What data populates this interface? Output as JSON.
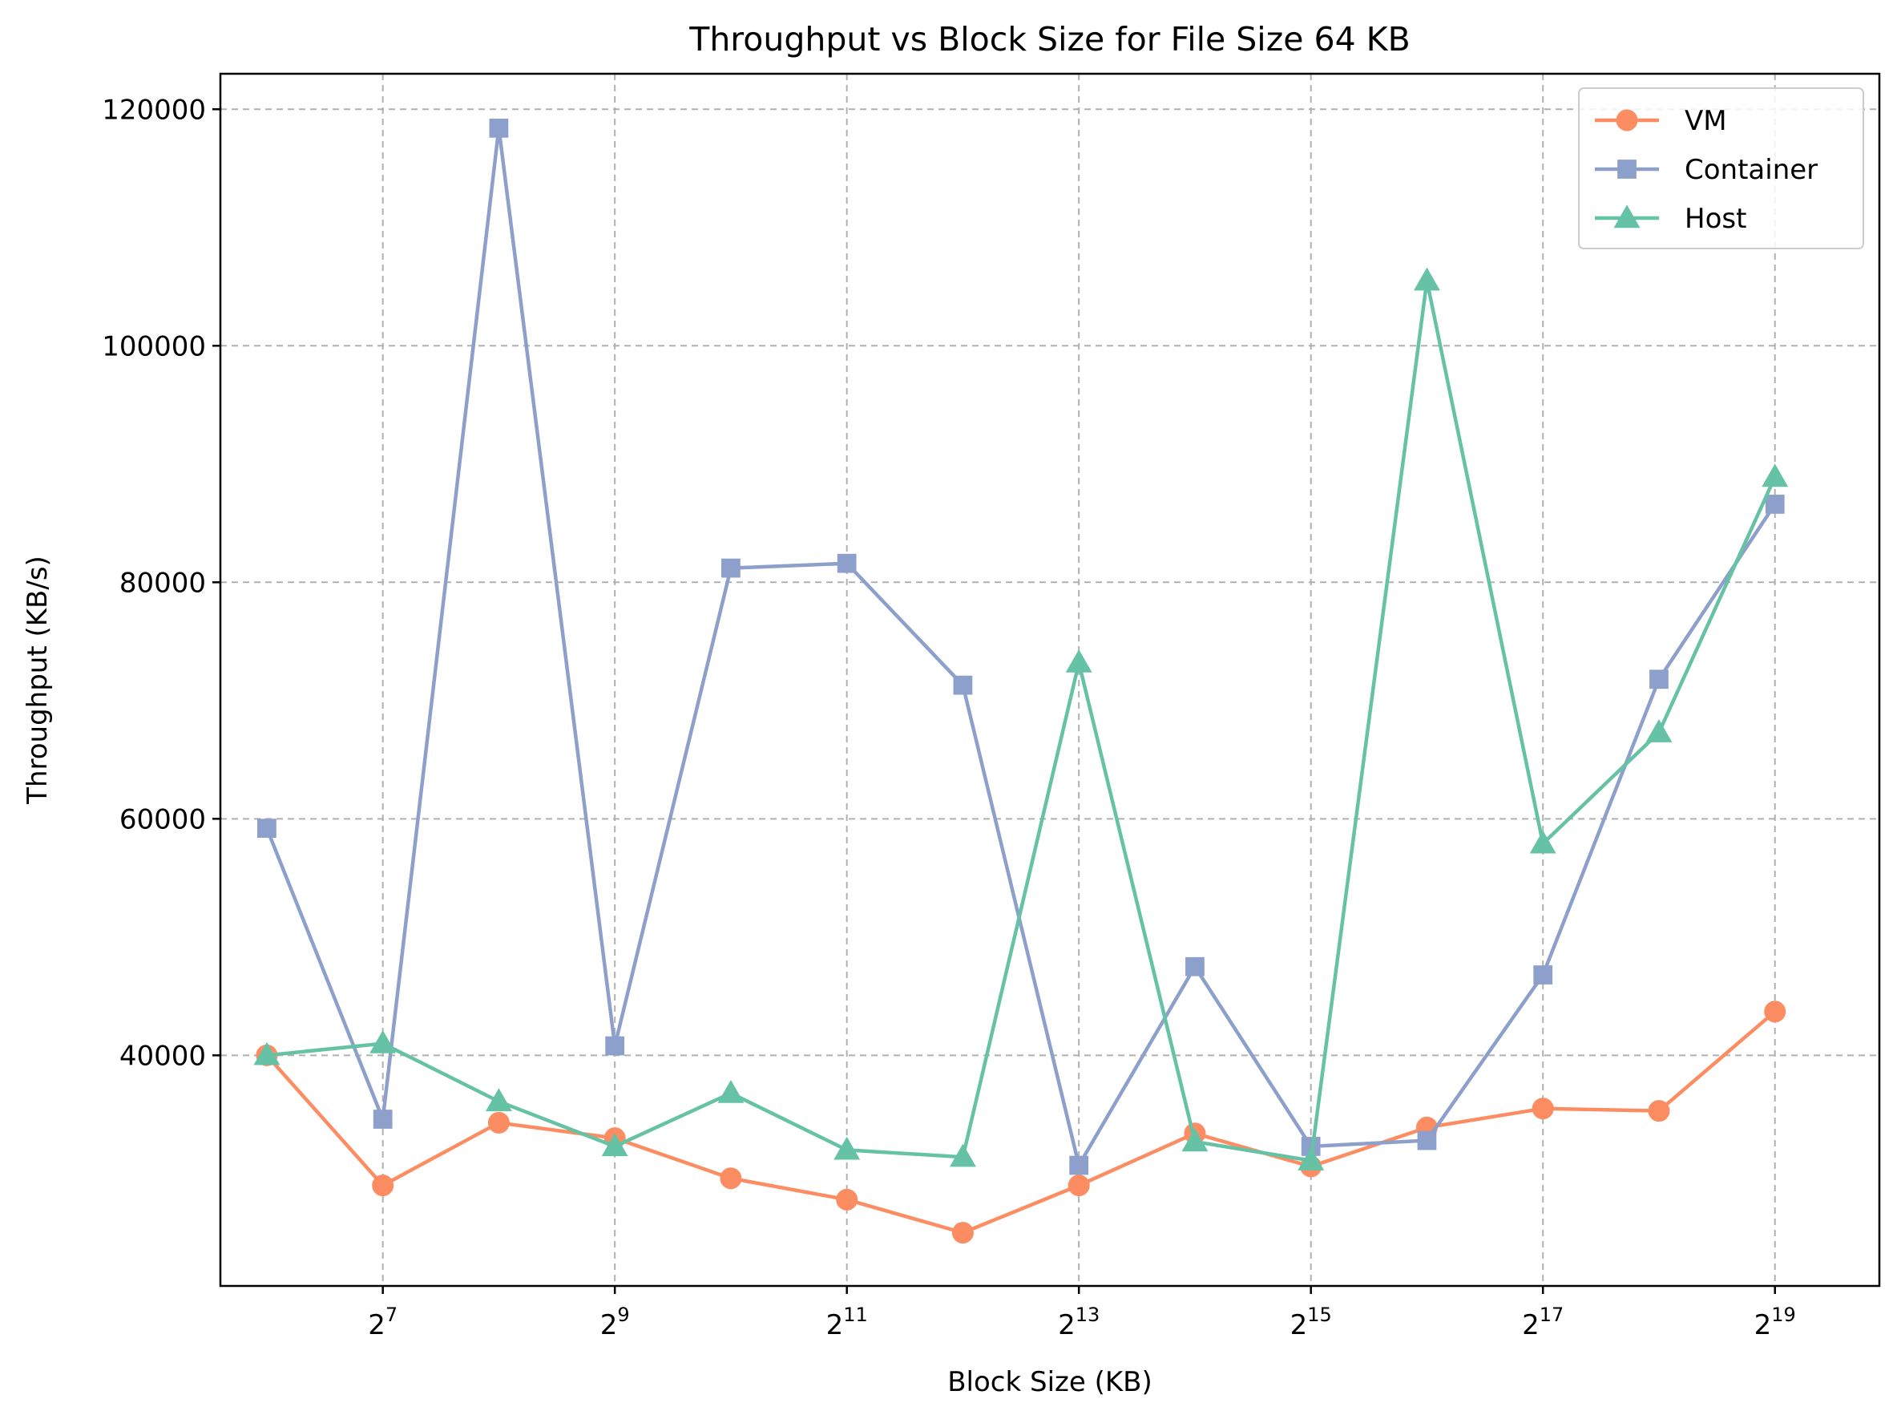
{
  "chart_data": {
    "type": "line",
    "title": "Throughput vs Block Size for File Size 64 KB",
    "xlabel": "Block Size (KB)",
    "ylabel": "Throughput (KB/s)",
    "x_scale": "log2",
    "x": [
      64,
      128,
      256,
      512,
      1024,
      2048,
      4096,
      8192,
      16384,
      32768,
      65536,
      131072,
      262144,
      524288
    ],
    "x_ticks": [
      {
        "value": 128,
        "base": "2",
        "exp": "7"
      },
      {
        "value": 512,
        "base": "2",
        "exp": "9"
      },
      {
        "value": 2048,
        "base": "2",
        "exp": "11"
      },
      {
        "value": 8192,
        "base": "2",
        "exp": "13"
      },
      {
        "value": 32768,
        "base": "2",
        "exp": "15"
      },
      {
        "value": 131072,
        "base": "2",
        "exp": "17"
      },
      {
        "value": 524288,
        "base": "2",
        "exp": "19"
      }
    ],
    "y_ticks": [
      40000,
      60000,
      80000,
      100000,
      120000
    ],
    "y_tick_labels": [
      "40000",
      "60000",
      "80000",
      "100000",
      "120000"
    ],
    "ylim": [
      20500,
      123000
    ],
    "grid": true,
    "legend_position": "top-right",
    "series": [
      {
        "name": "VM",
        "color": "#fc8d62",
        "marker": "circle",
        "values": [
          40000,
          29000,
          34300,
          33000,
          29600,
          27800,
          25000,
          29000,
          33400,
          30600,
          33900,
          35500,
          35300,
          43700
        ]
      },
      {
        "name": "Container",
        "color": "#8da0cb",
        "marker": "square",
        "values": [
          59200,
          34600,
          118400,
          40800,
          81200,
          81600,
          71300,
          30700,
          47500,
          32300,
          32800,
          46800,
          71800,
          86600
        ]
      },
      {
        "name": "Host",
        "color": "#66c2a5",
        "marker": "triangle",
        "values": [
          40000,
          41000,
          36100,
          32300,
          36800,
          32000,
          31400,
          73200,
          32700,
          31100,
          105500,
          57900,
          67300,
          88900
        ]
      }
    ]
  }
}
